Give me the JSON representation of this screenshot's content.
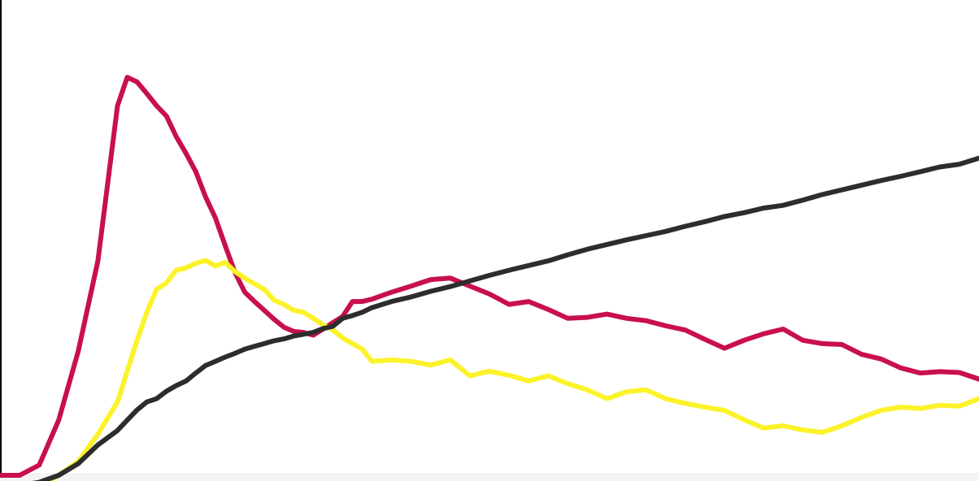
{
  "chart_data": {
    "type": "line",
    "title": "",
    "xlabel": "",
    "ylabel": "",
    "grid": false,
    "legend": "none",
    "xlim": [
      0,
      100
    ],
    "ylim": [
      0,
      100
    ],
    "x": [
      0,
      2,
      4,
      6,
      8,
      10,
      12,
      13,
      14,
      15,
      16,
      17,
      18,
      19,
      20,
      21,
      22,
      23,
      24,
      25,
      26,
      27,
      28,
      29,
      30,
      31,
      32,
      33,
      34,
      35,
      36,
      37,
      38,
      40,
      42,
      44,
      46,
      48,
      50,
      52,
      54,
      56,
      58,
      60,
      62,
      64,
      66,
      68,
      70,
      72,
      74,
      76,
      78,
      80,
      82,
      84,
      86,
      88,
      90,
      92,
      94,
      96,
      98,
      100
    ],
    "series": [
      {
        "color": "#c8104c",
        "values": [
          0.0,
          0.0,
          2.2,
          11.8,
          26.6,
          45.9,
          79.1,
          85.2,
          84.2,
          81.7,
          79.1,
          76.9,
          72.5,
          68.9,
          65.0,
          59.6,
          55.1,
          49.2,
          43.4,
          39.2,
          37.2,
          35.3,
          33.4,
          31.7,
          30.8,
          30.6,
          30.0,
          31.3,
          32.7,
          34.0,
          37.2,
          37.2,
          37.7,
          39.2,
          40.5,
          41.9,
          42.2,
          40.5,
          38.8,
          36.6,
          37.2,
          35.5,
          33.6,
          33.8,
          34.5,
          33.6,
          33.1,
          32.0,
          31.1,
          29.1,
          27.2,
          28.9,
          30.3,
          31.3,
          28.9,
          28.2,
          28.0,
          25.9,
          24.9,
          23.0,
          21.9,
          22.2,
          22.0,
          20.6
        ]
      },
      {
        "color": "#fcf22a",
        "values": [
          -3.2,
          -3.0,
          -2.5,
          0.0,
          3.0,
          8.8,
          15.7,
          22.3,
          28.9,
          34.9,
          39.8,
          41.2,
          43.9,
          44.4,
          45.4,
          46.0,
          44.8,
          45.6,
          43.6,
          42.2,
          41.0,
          39.8,
          37.5,
          36.6,
          35.3,
          34.9,
          33.6,
          32.2,
          31.1,
          29.4,
          28.2,
          27.0,
          24.4,
          24.7,
          24.4,
          23.6,
          24.7,
          21.3,
          22.3,
          21.4,
          20.2,
          21.3,
          19.6,
          18.3,
          16.4,
          17.9,
          18.3,
          16.4,
          15.4,
          14.6,
          13.9,
          11.9,
          10.1,
          10.6,
          9.7,
          9.2,
          10.6,
          12.4,
          13.9,
          14.6,
          14.3,
          15.0,
          14.8,
          16.4
        ]
      },
      {
        "color": "#2d2d2d",
        "values": [
          -2.5,
          -2.2,
          -1.5,
          0.0,
          2.5,
          6.5,
          9.6,
          11.8,
          14.0,
          15.7,
          16.4,
          18.0,
          19.2,
          20.2,
          21.9,
          23.5,
          24.4,
          25.3,
          26.1,
          27.0,
          27.6,
          28.2,
          28.8,
          29.2,
          29.8,
          30.2,
          30.6,
          31.4,
          31.9,
          33.6,
          34.2,
          34.9,
          35.9,
          37.2,
          38.2,
          39.4,
          40.4,
          41.6,
          42.8,
          43.9,
          44.9,
          45.9,
          47.2,
          48.4,
          49.4,
          50.4,
          51.3,
          52.2,
          53.3,
          54.3,
          55.4,
          56.2,
          57.2,
          57.8,
          58.9,
          60.1,
          61.1,
          62.1,
          63.1,
          64.0,
          65.0,
          66.0,
          66.6,
          67.9
        ]
      }
    ]
  }
}
